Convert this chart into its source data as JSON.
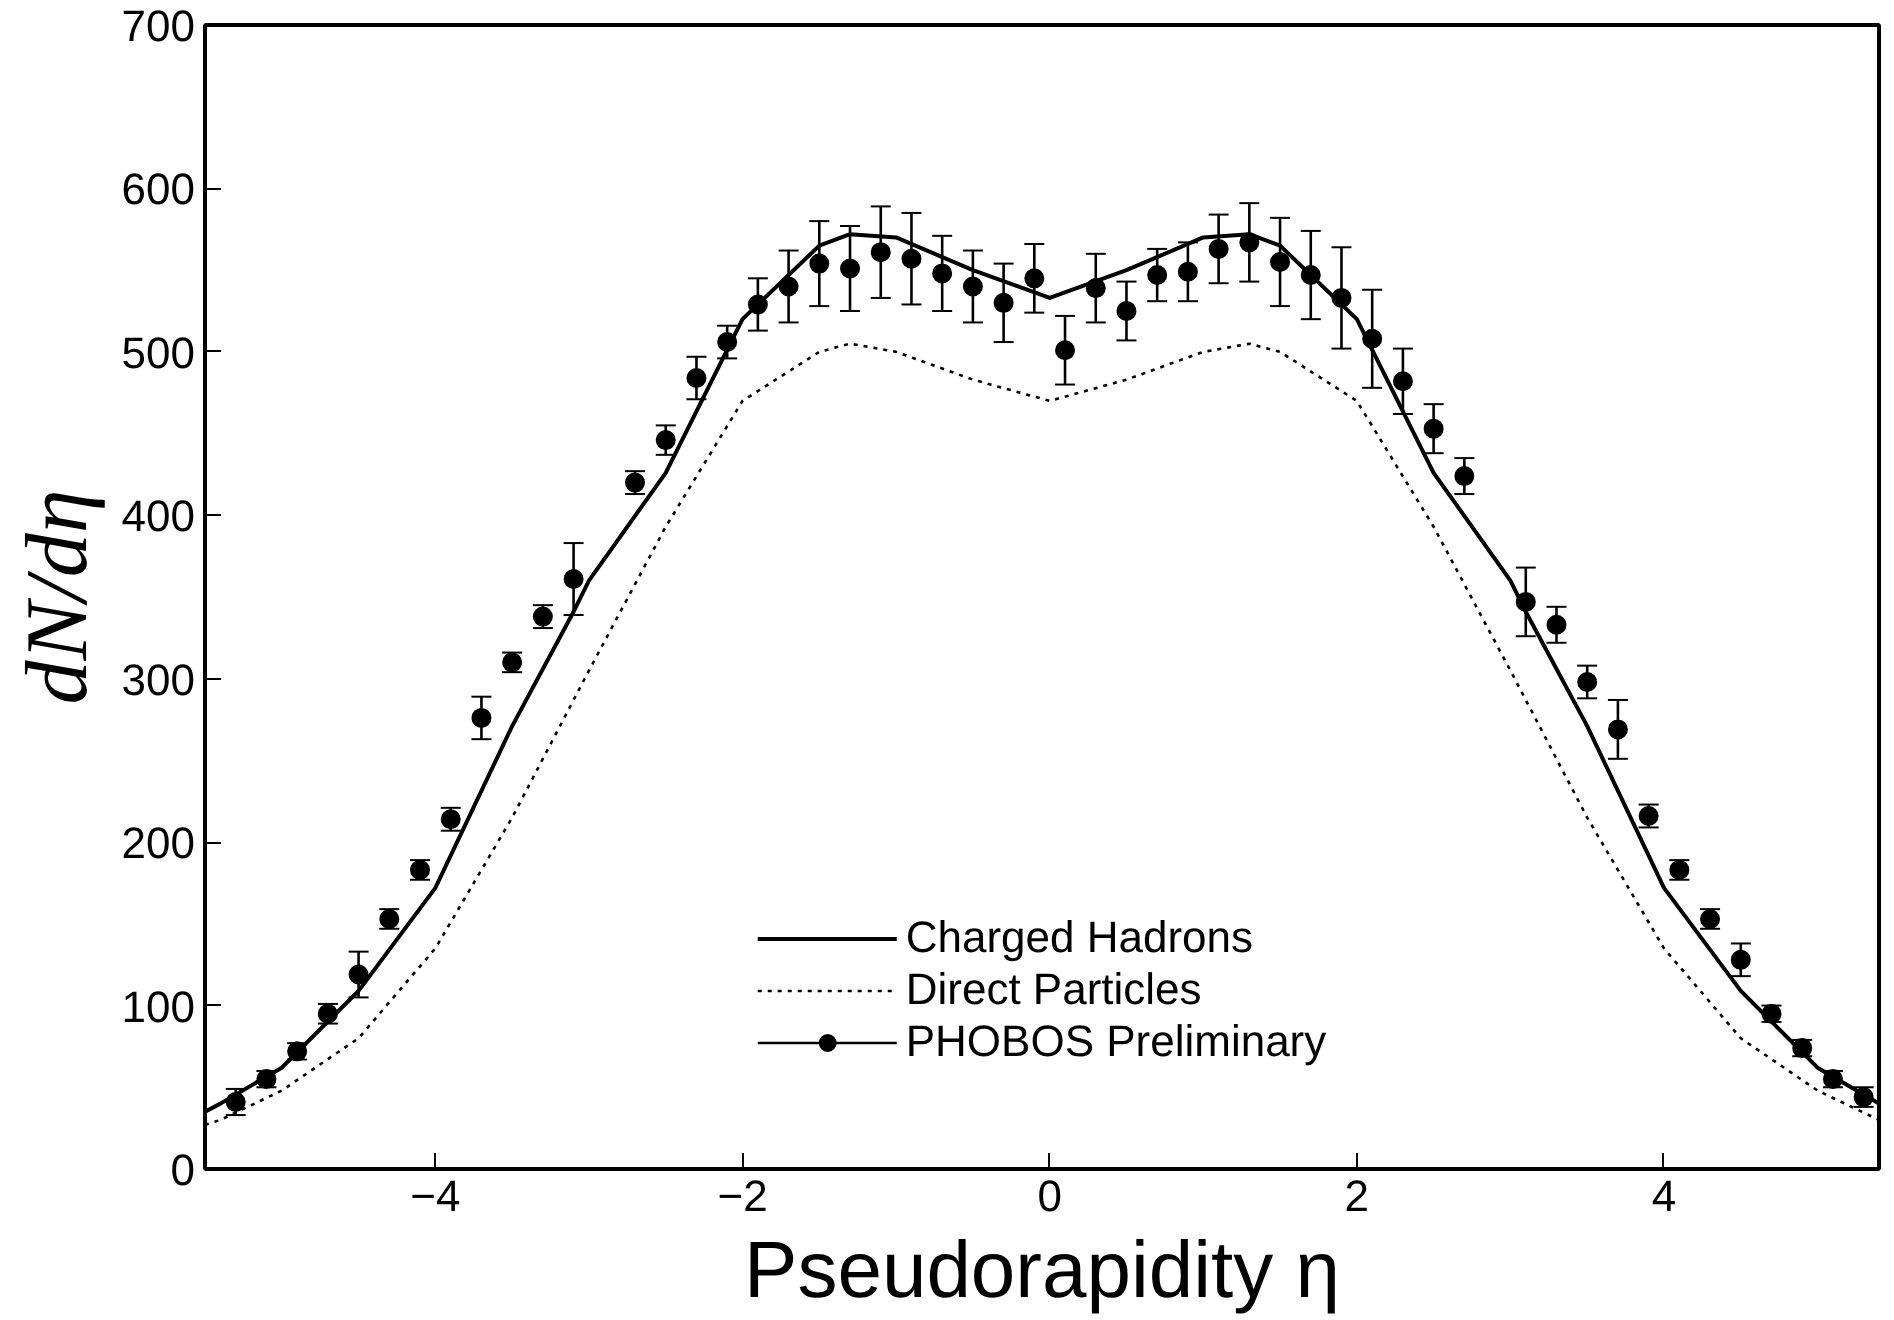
{
  "chart_data": {
    "type": "line",
    "xlabel": "Pseudorapidity η",
    "ylabel": "dN/dη",
    "xlim": [
      -5.5,
      5.4
    ],
    "xticks": [
      -4,
      -2,
      0,
      2,
      4
    ],
    "ylim": [
      0,
      700
    ],
    "yticks": [
      0,
      100,
      200,
      300,
      400,
      500,
      600,
      700
    ],
    "grid": false,
    "legend": "bottom",
    "series": [
      {
        "name": "Charged Hadrons",
        "color": "#000000",
        "line_style": "solid",
        "x": [
          -5.5,
          -5.4,
          -5,
          -4.5,
          -4,
          -3.5,
          -3.1,
          -3,
          -2.5,
          -2,
          -1.5,
          -1.3,
          -1,
          -0.5,
          0,
          0.5,
          1,
          1.3,
          1.5,
          2,
          2.5,
          3,
          3.1,
          3.5,
          4,
          4.5,
          5,
          5.4
        ],
        "values": [
          35,
          40,
          62,
          109,
          172,
          271,
          341,
          360,
          426,
          520,
          565,
          572,
          570,
          550,
          533,
          550,
          570,
          572,
          565,
          520,
          426,
          360,
          341,
          271,
          172,
          109,
          62,
          40
        ]
      },
      {
        "name": "Direct Particles",
        "color": "#000000",
        "line_style": "dotted",
        "x": [
          -5.5,
          -5.4,
          -5,
          -4.5,
          -4,
          -3.5,
          -3,
          -2.5,
          -2,
          -1.5,
          -1.3,
          -1,
          -0.5,
          0,
          0.5,
          1,
          1.3,
          1.5,
          2,
          2.5,
          3,
          3.5,
          4,
          4.5,
          5,
          5.4
        ],
        "values": [
          27,
          30,
          48,
          80,
          135,
          215,
          305,
          393,
          470,
          500,
          505,
          500,
          483,
          470,
          483,
          500,
          505,
          500,
          470,
          393,
          305,
          215,
          135,
          80,
          48,
          30
        ]
      },
      {
        "name": "PHOBOS Preliminary",
        "type": "scatter",
        "color": "#000000",
        "marker": "circle",
        "x": [
          -5.3,
          -5.1,
          -4.9,
          -4.7,
          -4.5,
          -4.3,
          -4.1,
          -3.9,
          -3.7,
          -3.5,
          -3.3,
          -3.1,
          -2.7,
          -2.5,
          -2.3,
          -2.1,
          -1.9,
          -1.7,
          -1.5,
          -1.3,
          -1.1,
          -0.9,
          -0.7,
          -0.5,
          -0.3,
          -0.1,
          0.1,
          0.3,
          0.5,
          0.7,
          0.9,
          1.1,
          1.3,
          1.5,
          1.7,
          1.9,
          2.1,
          2.3,
          2.5,
          2.7,
          3.1,
          3.3,
          3.5,
          3.7,
          3.9,
          4.1,
          4.3,
          4.5,
          4.7,
          4.9,
          5.1,
          5.3
        ],
        "values": [
          41,
          55,
          72,
          95,
          119,
          153,
          183,
          214,
          276,
          310,
          338,
          361,
          420,
          446,
          484,
          506,
          529,
          540,
          554,
          551,
          561,
          557,
          548,
          540,
          530,
          545,
          501,
          539,
          525,
          547,
          549,
          563,
          567,
          555,
          547,
          533,
          508,
          482,
          453,
          424,
          347,
          333,
          298,
          269,
          216,
          183,
          153,
          128,
          95,
          74,
          55,
          44
        ],
        "errors": [
          8,
          5,
          5,
          6,
          14,
          6,
          6,
          7,
          13,
          6,
          7,
          22,
          7,
          9,
          13,
          10,
          16,
          22,
          26,
          26,
          28,
          28,
          23,
          22,
          24,
          21,
          21,
          21,
          18,
          16,
          18,
          21,
          24,
          27,
          27,
          31,
          30,
          20,
          15,
          11,
          21,
          11,
          10,
          18,
          7,
          6,
          6,
          10,
          5,
          5,
          5,
          6
        ]
      }
    ]
  }
}
